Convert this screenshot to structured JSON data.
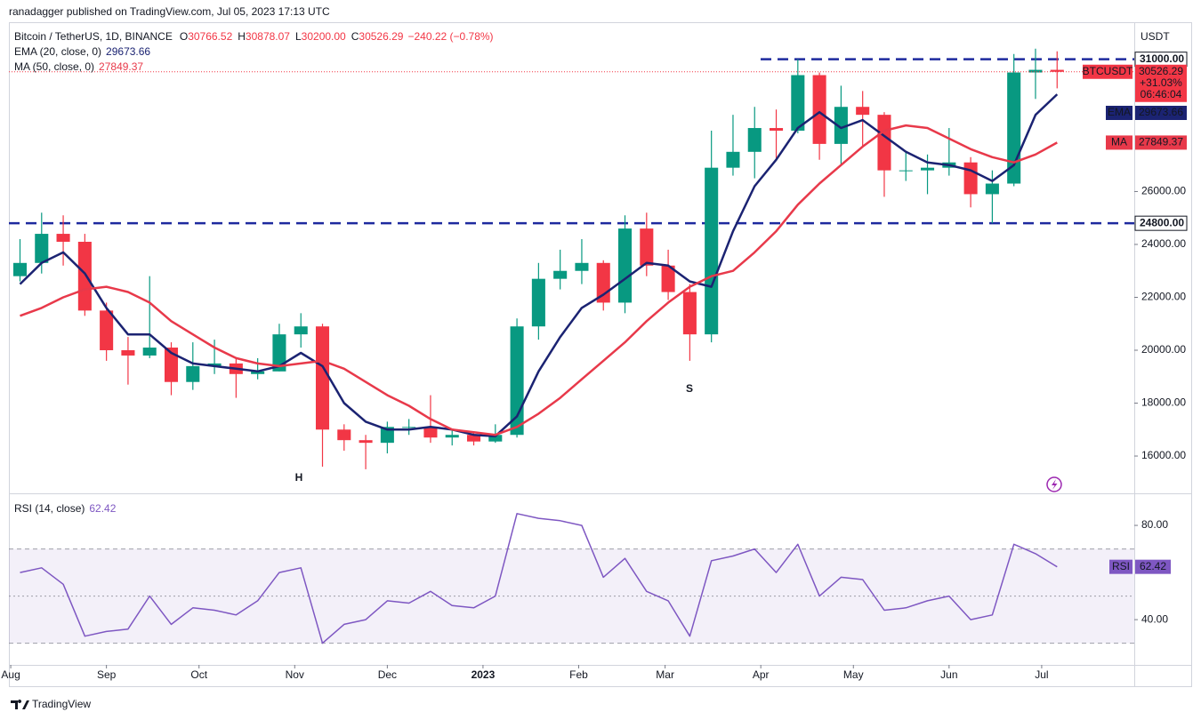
{
  "header": {
    "byline": "ranadagger published on TradingView.com, Jul 05, 2023 17:13 UTC",
    "footer": "TradingView"
  },
  "chart_data": [
    {
      "type": "candlestick",
      "symbol": "Bitcoin / TetherUS, 1D, BINANCE",
      "ohlc_legend": [
        {
          "key": "O",
          "value": "30766.52"
        },
        {
          "key": "H",
          "value": "30878.07"
        },
        {
          "key": "L",
          "value": "30200.00"
        },
        {
          "key": "C",
          "value": "30526.29"
        }
      ],
      "change": "−240.22 (−0.78%)",
      "currency": "USDT",
      "x": [
        3,
        10,
        17,
        24,
        31,
        38,
        45,
        52,
        59,
        66,
        73,
        80,
        87,
        94,
        101,
        108,
        115,
        122,
        129,
        136,
        143,
        150,
        157,
        164,
        171,
        178,
        185,
        192,
        199,
        206,
        213,
        220,
        227,
        234,
        241,
        248,
        255,
        262,
        269,
        276,
        283,
        290,
        297,
        304,
        311,
        318,
        325,
        332,
        339
      ],
      "xlim": [
        -0.6,
        364
      ],
      "xticks": [
        {
          "value": 0,
          "label": "Aug"
        },
        {
          "value": 31,
          "label": "Sep"
        },
        {
          "value": 61,
          "label": "Oct"
        },
        {
          "value": 92,
          "label": "Nov"
        },
        {
          "value": 122,
          "label": "Dec"
        },
        {
          "value": 153,
          "label": "2023"
        },
        {
          "value": 184,
          "label": "Feb"
        },
        {
          "value": 212,
          "label": "Mar"
        },
        {
          "value": 243,
          "label": "Apr"
        },
        {
          "value": 273,
          "label": "May"
        },
        {
          "value": 304,
          "label": "Jun"
        },
        {
          "value": 334,
          "label": "Jul"
        }
      ],
      "open": [
        22800,
        23300,
        24400,
        24100,
        21500,
        20000,
        19800,
        20100,
        18800,
        19400,
        19500,
        19100,
        19200,
        20600,
        20900,
        17000,
        16600,
        16500,
        17100,
        17100,
        16700,
        16800,
        16550,
        16800,
        20900,
        22700,
        23000,
        23300,
        21800,
        24600,
        23200,
        22200,
        20600,
        26900,
        27500,
        28400,
        28300,
        30400,
        27800,
        29200,
        28900,
        26800,
        26800,
        26900,
        27100,
        25900,
        26300,
        30500,
        30600
      ],
      "high": [
        24200,
        25200,
        25100,
        24400,
        21800,
        20500,
        22800,
        20300,
        20300,
        20400,
        19700,
        19700,
        21000,
        21400,
        21000,
        17200,
        16800,
        17300,
        17400,
        18300,
        17000,
        16900,
        17200,
        21200,
        23300,
        23800,
        24200,
        23400,
        25100,
        25200,
        23800,
        22500,
        28300,
        28900,
        29200,
        29100,
        31000,
        30500,
        30000,
        29800,
        29000,
        27500,
        27400,
        28400,
        27300,
        26800,
        31200,
        31400,
        31300
      ],
      "low": [
        22600,
        22900,
        23200,
        21300,
        19600,
        18700,
        19700,
        18300,
        18500,
        19100,
        18200,
        18900,
        19200,
        20100,
        15600,
        16200,
        15500,
        16100,
        16800,
        16500,
        16400,
        16400,
        16500,
        16700,
        20400,
        22300,
        22500,
        21500,
        21400,
        22800,
        21900,
        19600,
        20300,
        26600,
        26500,
        27200,
        28200,
        27200,
        27000,
        27700,
        25800,
        26400,
        25900,
        26600,
        25400,
        24800,
        26200,
        29500,
        29900
      ],
      "close": [
        23300,
        24400,
        24100,
        21500,
        20000,
        19800,
        20100,
        18800,
        19400,
        19500,
        19100,
        19200,
        20600,
        20900,
        17000,
        16600,
        16500,
        17100,
        17100,
        16700,
        16800,
        16550,
        16800,
        20900,
        22700,
        23000,
        23300,
        21800,
        24600,
        23200,
        22200,
        20600,
        26900,
        27500,
        28400,
        28300,
        30400,
        27800,
        29200,
        28900,
        26800,
        26800,
        26900,
        27100,
        25900,
        26300,
        30500,
        30600,
        30526.29
      ],
      "up_color": "#089981",
      "down_color": "#f23645",
      "ylim": [
        14590,
        32400
      ],
      "yticks": [
        {
          "value": 16000,
          "label": "16000.00"
        },
        {
          "value": 18000,
          "label": "18000.00"
        },
        {
          "value": 20000,
          "label": "20000.00"
        },
        {
          "value": 22000,
          "label": "22000.00"
        },
        {
          "value": 24000,
          "label": "24000.00"
        },
        {
          "value": 26000,
          "label": "26000.00"
        }
      ],
      "overlays": [
        {
          "name": "EMA",
          "legend": "EMA (20, close, 0)",
          "value_label": "29673.66",
          "color": "#1b2372",
          "values": [
            22500,
            23300,
            23700,
            22900,
            21600,
            20600,
            20600,
            19900,
            19500,
            19400,
            19300,
            19200,
            19400,
            19900,
            19400,
            18000,
            17300,
            17000,
            17000,
            17100,
            17000,
            16800,
            16750,
            17500,
            19200,
            20500,
            21600,
            22100,
            22700,
            23300,
            23200,
            22600,
            22400,
            24500,
            26200,
            27200,
            28400,
            29000,
            28400,
            28700,
            28100,
            27500,
            27100,
            27000,
            26800,
            26400,
            27000,
            28900,
            29673.66
          ]
        },
        {
          "name": "MA",
          "legend": "MA (50, close, 0)",
          "value_label": "27849.37",
          "color": "#e8394a",
          "values": [
            21300,
            21600,
            22000,
            22300,
            22400,
            22200,
            21800,
            21100,
            20600,
            20100,
            19700,
            19500,
            19400,
            19500,
            19600,
            19300,
            18800,
            18300,
            17900,
            17400,
            17000,
            16900,
            16800,
            17100,
            17600,
            18200,
            18900,
            19600,
            20300,
            21100,
            21800,
            22400,
            22800,
            23000,
            23700,
            24500,
            25500,
            26300,
            27000,
            27700,
            28300,
            28500,
            28400,
            28000,
            27600,
            27300,
            27100,
            27400,
            27849.37
          ]
        }
      ],
      "levels": [
        {
          "value": 31000,
          "label": "31000.00"
        },
        {
          "value": 24800,
          "label": "24800.00"
        }
      ],
      "level_color": "#1e2a9e",
      "last_price": {
        "symbol": "BTCUSDT",
        "value": 30526.29,
        "label": "30526.29",
        "change": "+31.03%",
        "countdown": "06:46:04"
      },
      "annotations": [
        "H",
        "S"
      ]
    },
    {
      "type": "line",
      "title": "RSI (14, close)",
      "name": "RSI",
      "value_label": "62.42",
      "color": "#7e57c2",
      "x": [
        3,
        10,
        17,
        24,
        31,
        38,
        45,
        52,
        59,
        66,
        73,
        80,
        87,
        94,
        101,
        108,
        115,
        122,
        129,
        136,
        143,
        150,
        157,
        164,
        171,
        178,
        185,
        192,
        199,
        206,
        213,
        220,
        227,
        234,
        241,
        248,
        255,
        262,
        269,
        276,
        283,
        290,
        297,
        304,
        311,
        318,
        325,
        332,
        339
      ],
      "values": [
        60,
        62,
        55,
        33,
        35,
        36,
        50,
        38,
        45,
        44,
        42,
        48,
        60,
        62,
        30,
        38,
        40,
        48,
        47,
        52,
        46,
        45,
        50,
        85,
        83,
        82,
        80,
        58,
        66,
        52,
        48,
        33,
        65,
        67,
        70,
        60,
        72,
        50,
        58,
        57,
        44,
        45,
        48,
        50,
        40,
        42,
        72,
        68,
        62.42
      ],
      "ylim": [
        20.8,
        93.6
      ],
      "yticks": [
        {
          "value": 40,
          "label": "40.00"
        },
        {
          "value": 80,
          "label": "80.00"
        }
      ],
      "band": [
        30,
        70
      ],
      "midline": 50
    }
  ]
}
